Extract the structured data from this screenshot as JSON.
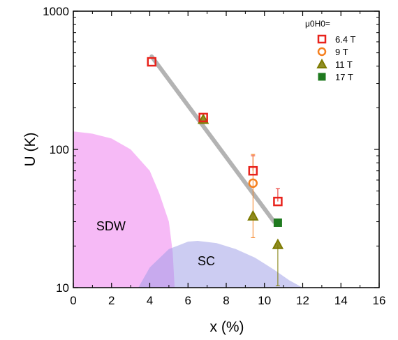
{
  "chart_data": {
    "type": "scatter",
    "title": "",
    "xlabel": "x (%)",
    "ylabel": "U (K)",
    "xlim": [
      0,
      16
    ],
    "ylim": [
      10,
      1000
    ],
    "yscale": "log",
    "x_ticks": [
      "0",
      "2",
      "4",
      "6",
      "8",
      "10",
      "12",
      "14",
      "16"
    ],
    "y_ticks": [
      "10",
      "100",
      "1000"
    ],
    "legend_title": "μ0H0=",
    "legend_position": "top-right",
    "regions": [
      {
        "name": "SDW",
        "label": "SDW",
        "color": "#ee82ee",
        "boundary": [
          [
            0,
            135
          ],
          [
            1,
            130
          ],
          [
            2,
            120
          ],
          [
            3,
            100
          ],
          [
            4,
            70
          ],
          [
            4.5,
            48
          ],
          [
            5,
            30
          ],
          [
            5.2,
            18
          ],
          [
            5.3,
            10
          ]
        ]
      },
      {
        "name": "SC",
        "label": "SC",
        "color": "#9a9ae6",
        "boundary": [
          [
            3.4,
            10
          ],
          [
            4,
            14
          ],
          [
            5,
            19
          ],
          [
            6,
            21.5
          ],
          [
            6.5,
            21.8
          ],
          [
            7.5,
            21
          ],
          [
            8.5,
            19
          ],
          [
            9.5,
            16.5
          ],
          [
            10.5,
            13.5
          ],
          [
            11.3,
            11.3
          ],
          [
            12,
            10
          ]
        ]
      }
    ],
    "fit_line": {
      "x": [
        4.1,
        10.5
      ],
      "y": [
        470,
        30
      ],
      "color": "#b3b3b3"
    },
    "series": [
      {
        "name": "6.4 T",
        "marker": "square-open",
        "color": "#e8221b",
        "x": [
          4.1,
          6.8,
          9.4,
          10.7
        ],
        "y": [
          430,
          170,
          70,
          42
        ],
        "err_up": [
          0,
          0,
          90,
          52
        ],
        "err_down": [
          0,
          0,
          0,
          0
        ]
      },
      {
        "name": "9 T",
        "marker": "circle-open",
        "color": "#f5801f",
        "x": [
          9.4
        ],
        "y": [
          57
        ],
        "err_up": [
          92
        ],
        "err_down": [
          23
        ]
      },
      {
        "name": "11 T",
        "marker": "triangle",
        "color": "#7d7a00",
        "x": [
          6.8,
          9.4,
          10.7
        ],
        "y": [
          165,
          33,
          20.5
        ],
        "err_up": [
          0,
          0,
          0
        ],
        "err_down": [
          0,
          0,
          10.3
        ]
      },
      {
        "name": "17 T",
        "marker": "square-filled",
        "color": "#1f7a1f",
        "x": [
          10.7
        ],
        "y": [
          29.5
        ],
        "err_up": [
          0
        ],
        "err_down": [
          0
        ]
      }
    ]
  }
}
